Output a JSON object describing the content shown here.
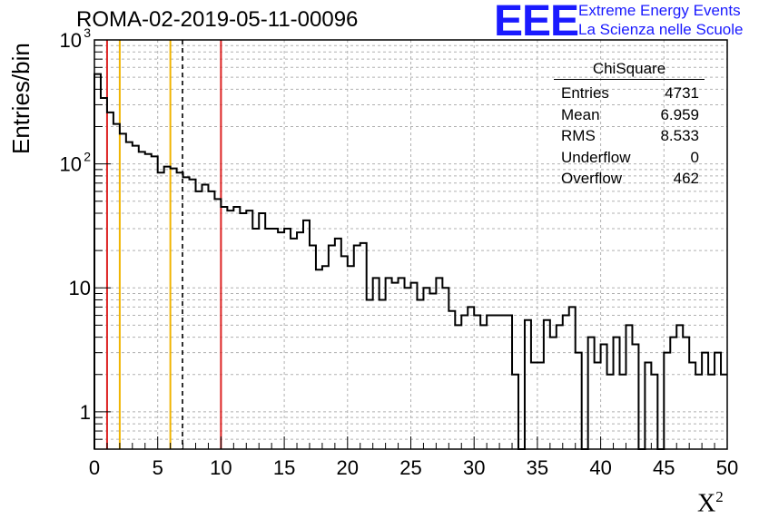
{
  "header": {
    "title": "ROMA-02-2019-05-11-00096",
    "logo_text": "EEE",
    "tagline_1": "Extreme Energy Events",
    "tagline_2": "La Scienza nelle Scuole"
  },
  "stats_box": {
    "title": "ChiSquare",
    "rows": [
      {
        "label": "Entries",
        "value": "4731"
      },
      {
        "label": "Mean",
        "value": "6.959"
      },
      {
        "label": "RMS",
        "value": "8.533"
      },
      {
        "label": "Underflow",
        "value": "0"
      },
      {
        "label": "Overflow",
        "value": "462"
      }
    ]
  },
  "colors": {
    "red_line": "#dd2222",
    "orange_line": "#f0b400",
    "histogram": "#000000",
    "grid": "#b0b0b0",
    "logo": "#1a1aff"
  },
  "chart_data": {
    "type": "bar",
    "style": "step-histogram",
    "title": "ROMA-02-2019-05-11-00096",
    "xlabel": "X",
    "xlabel_superscript": "2",
    "ylabel": "Entries/bin",
    "xlim": [
      0,
      50
    ],
    "ylim": [
      0.5,
      1000
    ],
    "y_scale": "log",
    "grid": true,
    "bin_width": 0.5,
    "x_ticks": [
      "0",
      "5",
      "10",
      "15",
      "20",
      "25",
      "30",
      "35",
      "40",
      "45",
      "50"
    ],
    "y_ticks": [
      {
        "value": 1,
        "label": "1"
      },
      {
        "value": 10,
        "label": "10"
      },
      {
        "value": 100,
        "label": "10",
        "sup": "2"
      },
      {
        "value": 1000,
        "label": "10",
        "sup": "3"
      }
    ],
    "bin_edges_start": 0,
    "values": [
      530,
      340,
      260,
      210,
      175,
      150,
      140,
      125,
      120,
      115,
      85,
      95,
      92,
      85,
      78,
      75,
      60,
      68,
      60,
      52,
      45,
      42,
      45,
      40,
      42,
      30,
      40,
      30,
      30,
      28,
      30,
      25,
      28,
      35,
      22,
      14,
      15,
      22,
      25,
      18,
      15,
      22,
      23,
      8,
      12,
      8,
      12,
      11,
      12,
      10,
      11,
      8,
      10,
      9,
      12,
      10,
      6.5,
      5,
      6,
      7,
      6,
      5,
      6,
      6,
      6,
      6,
      2,
      0,
      5.5,
      2.5,
      2.5,
      5.5,
      4,
      5,
      6,
      7,
      3,
      0,
      4,
      2.5,
      3.5,
      2,
      4,
      2,
      5,
      3.5,
      0,
      2.5,
      2,
      0,
      3,
      4,
      5,
      4,
      2.5,
      2,
      3,
      2,
      3,
      2
    ],
    "vertical_lines": [
      {
        "x": 1.0,
        "color": "#dd2222",
        "style": "solid"
      },
      {
        "x": 2.0,
        "color": "#f0b400",
        "style": "solid"
      },
      {
        "x": 6.0,
        "color": "#f0b400",
        "style": "solid"
      },
      {
        "x": 6.959,
        "color": "#000000",
        "style": "dashed"
      },
      {
        "x": 10.0,
        "color": "#dd2222",
        "style": "solid"
      }
    ]
  }
}
